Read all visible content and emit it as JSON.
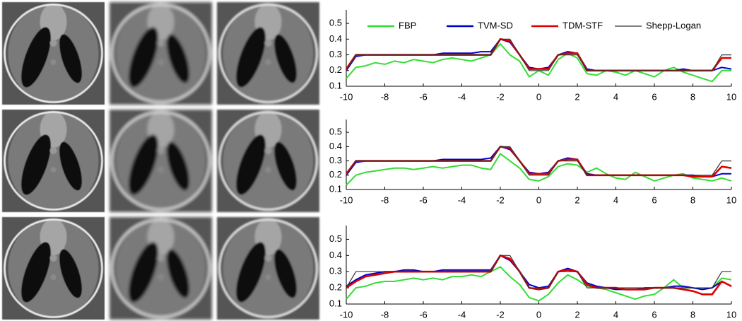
{
  "chart_data": [
    {
      "type": "line",
      "legend": "top",
      "x": [
        -10,
        -9.5,
        -9,
        -8.5,
        -8,
        -7.5,
        -7,
        -6.5,
        -6,
        -5.5,
        -5,
        -4.5,
        -4,
        -3.5,
        -3,
        -2.5,
        -2,
        -1.5,
        -1,
        -0.5,
        0,
        0.5,
        1,
        1.5,
        2,
        2.5,
        3,
        3.5,
        4,
        4.5,
        5,
        5.5,
        6,
        6.5,
        7,
        7.5,
        8,
        8.5,
        9,
        9.5,
        10
      ],
      "xlim": [
        -10,
        10
      ],
      "xticks": [
        -10,
        -8,
        -6,
        -4,
        -2,
        0,
        2,
        4,
        6,
        8,
        10
      ],
      "ylim": [
        0.1,
        0.55
      ],
      "yticks": [
        0.1,
        0.2,
        0.3,
        0.4,
        0.5
      ],
      "series": [
        {
          "name": "FBP",
          "color": "#33dd33",
          "values": [
            0.15,
            0.22,
            0.23,
            0.25,
            0.24,
            0.26,
            0.25,
            0.27,
            0.26,
            0.25,
            0.27,
            0.28,
            0.27,
            0.26,
            0.28,
            0.3,
            0.37,
            0.3,
            0.26,
            0.16,
            0.2,
            0.17,
            0.27,
            0.31,
            0.28,
            0.18,
            0.17,
            0.2,
            0.19,
            0.17,
            0.2,
            0.18,
            0.16,
            0.2,
            0.22,
            0.19,
            0.17,
            0.15,
            0.13,
            0.2,
            0.2
          ]
        },
        {
          "name": "TVM-SD",
          "color": "#0000cc",
          "values": [
            0.2,
            0.29,
            0.3,
            0.3,
            0.3,
            0.3,
            0.3,
            0.3,
            0.3,
            0.3,
            0.31,
            0.31,
            0.31,
            0.31,
            0.32,
            0.32,
            0.4,
            0.38,
            0.3,
            0.22,
            0.21,
            0.22,
            0.3,
            0.32,
            0.31,
            0.21,
            0.2,
            0.2,
            0.2,
            0.2,
            0.2,
            0.2,
            0.2,
            0.2,
            0.2,
            0.21,
            0.2,
            0.2,
            0.2,
            0.22,
            0.21
          ]
        },
        {
          "name": "TDM-STF",
          "color": "#dd0000",
          "values": [
            0.21,
            0.3,
            0.3,
            0.3,
            0.3,
            0.3,
            0.3,
            0.3,
            0.3,
            0.3,
            0.3,
            0.3,
            0.3,
            0.3,
            0.3,
            0.3,
            0.4,
            0.39,
            0.3,
            0.21,
            0.21,
            0.21,
            0.3,
            0.31,
            0.31,
            0.2,
            0.2,
            0.2,
            0.2,
            0.2,
            0.2,
            0.2,
            0.2,
            0.2,
            0.2,
            0.2,
            0.2,
            0.2,
            0.2,
            0.28,
            0.28
          ]
        },
        {
          "name": "Shepp-Logan",
          "color": "#333333",
          "values": [
            0.2,
            0.3,
            0.3,
            0.3,
            0.3,
            0.3,
            0.3,
            0.3,
            0.3,
            0.3,
            0.3,
            0.3,
            0.3,
            0.3,
            0.3,
            0.3,
            0.4,
            0.4,
            0.3,
            0.2,
            0.2,
            0.2,
            0.3,
            0.3,
            0.3,
            0.2,
            0.2,
            0.2,
            0.2,
            0.2,
            0.2,
            0.2,
            0.2,
            0.2,
            0.2,
            0.2,
            0.2,
            0.2,
            0.2,
            0.3,
            0.3
          ]
        }
      ]
    },
    {
      "type": "line",
      "x": [
        -10,
        -9.5,
        -9,
        -8.5,
        -8,
        -7.5,
        -7,
        -6.5,
        -6,
        -5.5,
        -5,
        -4.5,
        -4,
        -3.5,
        -3,
        -2.5,
        -2,
        -1.5,
        -1,
        -0.5,
        0,
        0.5,
        1,
        1.5,
        2,
        2.5,
        3,
        3.5,
        4,
        4.5,
        5,
        5.5,
        6,
        6.5,
        7,
        7.5,
        8,
        8.5,
        9,
        9.5,
        10
      ],
      "xlim": [
        -10,
        10
      ],
      "xticks": [
        -10,
        -8,
        -6,
        -4,
        -2,
        0,
        2,
        4,
        6,
        8,
        10
      ],
      "ylim": [
        0.1,
        0.55
      ],
      "yticks": [
        0.1,
        0.2,
        0.3,
        0.4,
        0.5
      ],
      "series": [
        {
          "color": "#33dd33",
          "values": [
            0.13,
            0.2,
            0.22,
            0.23,
            0.24,
            0.25,
            0.25,
            0.24,
            0.25,
            0.26,
            0.25,
            0.26,
            0.27,
            0.27,
            0.25,
            0.24,
            0.35,
            0.3,
            0.25,
            0.17,
            0.16,
            0.19,
            0.26,
            0.28,
            0.27,
            0.22,
            0.25,
            0.21,
            0.18,
            0.17,
            0.22,
            0.19,
            0.16,
            0.18,
            0.2,
            0.21,
            0.18,
            0.17,
            0.16,
            0.18,
            0.16
          ]
        },
        {
          "color": "#0000cc",
          "values": [
            0.2,
            0.29,
            0.3,
            0.3,
            0.3,
            0.3,
            0.3,
            0.3,
            0.3,
            0.3,
            0.31,
            0.31,
            0.31,
            0.31,
            0.31,
            0.32,
            0.4,
            0.38,
            0.3,
            0.22,
            0.21,
            0.22,
            0.3,
            0.32,
            0.31,
            0.21,
            0.2,
            0.2,
            0.2,
            0.2,
            0.2,
            0.2,
            0.2,
            0.2,
            0.2,
            0.2,
            0.2,
            0.19,
            0.19,
            0.21,
            0.21
          ]
        },
        {
          "color": "#dd0000",
          "values": [
            0.21,
            0.3,
            0.3,
            0.3,
            0.3,
            0.3,
            0.3,
            0.3,
            0.3,
            0.3,
            0.3,
            0.3,
            0.3,
            0.3,
            0.3,
            0.3,
            0.4,
            0.39,
            0.3,
            0.21,
            0.21,
            0.21,
            0.3,
            0.31,
            0.31,
            0.2,
            0.2,
            0.2,
            0.2,
            0.2,
            0.2,
            0.2,
            0.2,
            0.2,
            0.2,
            0.2,
            0.19,
            0.19,
            0.19,
            0.26,
            0.25
          ]
        },
        {
          "color": "#333333",
          "values": [
            0.2,
            0.3,
            0.3,
            0.3,
            0.3,
            0.3,
            0.3,
            0.3,
            0.3,
            0.3,
            0.3,
            0.3,
            0.3,
            0.3,
            0.3,
            0.3,
            0.4,
            0.4,
            0.3,
            0.2,
            0.2,
            0.2,
            0.3,
            0.3,
            0.3,
            0.2,
            0.2,
            0.2,
            0.2,
            0.2,
            0.2,
            0.2,
            0.2,
            0.2,
            0.2,
            0.2,
            0.2,
            0.2,
            0.2,
            0.3,
            0.3
          ]
        }
      ]
    },
    {
      "type": "line",
      "x": [
        -10,
        -9.5,
        -9,
        -8.5,
        -8,
        -7.5,
        -7,
        -6.5,
        -6,
        -5.5,
        -5,
        -4.5,
        -4,
        -3.5,
        -3,
        -2.5,
        -2,
        -1.5,
        -1,
        -0.5,
        0,
        0.5,
        1,
        1.5,
        2,
        2.5,
        3,
        3.5,
        4,
        4.5,
        5,
        5.5,
        6,
        6.5,
        7,
        7.5,
        8,
        8.5,
        9,
        9.5,
        10
      ],
      "xlim": [
        -10,
        10
      ],
      "xticks": [
        -10,
        -8,
        -6,
        -4,
        -2,
        0,
        2,
        4,
        6,
        8,
        10
      ],
      "ylim": [
        0.1,
        0.55
      ],
      "yticks": [
        0.1,
        0.2,
        0.3,
        0.4,
        0.5
      ],
      "series": [
        {
          "color": "#33dd33",
          "values": [
            0.13,
            0.2,
            0.21,
            0.23,
            0.24,
            0.24,
            0.25,
            0.26,
            0.25,
            0.26,
            0.25,
            0.27,
            0.27,
            0.28,
            0.27,
            0.3,
            0.33,
            0.27,
            0.22,
            0.14,
            0.12,
            0.16,
            0.23,
            0.28,
            0.25,
            0.21,
            0.2,
            0.19,
            0.17,
            0.15,
            0.13,
            0.15,
            0.16,
            0.2,
            0.25,
            0.2,
            0.2,
            0.19,
            0.2,
            0.26,
            0.25
          ]
        },
        {
          "color": "#0000cc",
          "values": [
            0.21,
            0.25,
            0.28,
            0.29,
            0.3,
            0.3,
            0.31,
            0.31,
            0.3,
            0.3,
            0.31,
            0.31,
            0.31,
            0.31,
            0.31,
            0.31,
            0.4,
            0.37,
            0.3,
            0.22,
            0.2,
            0.21,
            0.3,
            0.32,
            0.3,
            0.23,
            0.21,
            0.2,
            0.19,
            0.19,
            0.19,
            0.2,
            0.2,
            0.2,
            0.21,
            0.21,
            0.2,
            0.19,
            0.2,
            0.24,
            0.21
          ]
        },
        {
          "color": "#dd0000",
          "values": [
            0.2,
            0.24,
            0.27,
            0.28,
            0.29,
            0.3,
            0.3,
            0.3,
            0.3,
            0.3,
            0.3,
            0.3,
            0.3,
            0.3,
            0.3,
            0.3,
            0.4,
            0.38,
            0.3,
            0.2,
            0.19,
            0.2,
            0.3,
            0.31,
            0.3,
            0.22,
            0.2,
            0.2,
            0.2,
            0.19,
            0.19,
            0.19,
            0.2,
            0.2,
            0.2,
            0.19,
            0.18,
            0.16,
            0.16,
            0.24,
            0.21
          ]
        },
        {
          "color": "#333333",
          "values": [
            0.2,
            0.3,
            0.3,
            0.3,
            0.3,
            0.3,
            0.3,
            0.3,
            0.3,
            0.3,
            0.3,
            0.3,
            0.3,
            0.3,
            0.3,
            0.3,
            0.4,
            0.4,
            0.3,
            0.2,
            0.2,
            0.2,
            0.3,
            0.3,
            0.3,
            0.2,
            0.2,
            0.2,
            0.2,
            0.2,
            0.2,
            0.2,
            0.2,
            0.2,
            0.2,
            0.2,
            0.2,
            0.2,
            0.2,
            0.3,
            0.3
          ]
        }
      ]
    }
  ]
}
